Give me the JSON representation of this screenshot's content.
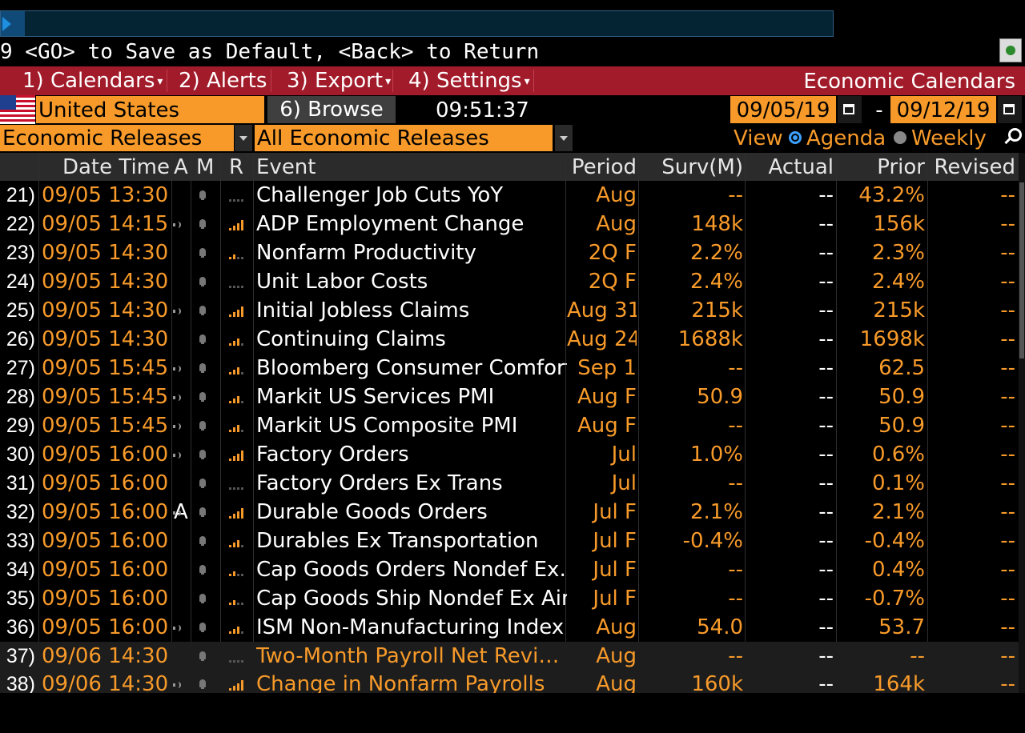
{
  "hint": "9 <GO> to Save as Default, <Back> to Return",
  "menu": {
    "items": [
      {
        "label": "1) Calendars",
        "caret": "▾"
      },
      {
        "label": "2) Alerts",
        "caret": ""
      },
      {
        "label": "3) Export",
        "caret": "▾"
      },
      {
        "label": "4) Settings",
        "caret": "▾"
      }
    ],
    "title": "Economic Calendars"
  },
  "toolbar": {
    "country": "United States",
    "browse": "6) Browse",
    "time": "09:51:37",
    "start_date": "09/05/19",
    "date_sep": "-",
    "end_date": "09/12/19"
  },
  "filters": {
    "category": "Economic Releases",
    "subcategory": "All Economic Releases",
    "view_label": "View",
    "view_agenda": "Agenda",
    "view_weekly": "Weekly",
    "selected_view": "Agenda"
  },
  "columns": {
    "datetime": "Date Time",
    "a": "A",
    "m": "M",
    "r": "R",
    "event": "Event",
    "period": "Period",
    "surv": "Surv(M)",
    "actual": "Actual",
    "prior": "Prior",
    "revised": "Revised"
  },
  "colors": {
    "accent": "#f79a2a",
    "menu": "#a21b2a"
  },
  "rows": [
    {
      "num": "21)",
      "datetime": "09/05 13:30",
      "audio": false,
      "relevance": 0,
      "event": "Challenger Job Cuts YoY",
      "period": "Aug",
      "surv": "--",
      "actual": "--",
      "prior": "43.2%",
      "revised": "--"
    },
    {
      "num": "22)",
      "datetime": "09/05 14:15",
      "audio": true,
      "relevance": 4,
      "event": "ADP Employment Change",
      "period": "Aug",
      "surv": "148k",
      "actual": "--",
      "prior": "156k",
      "revised": "--"
    },
    {
      "num": "23)",
      "datetime": "09/05 14:30",
      "audio": false,
      "relevance": 2,
      "event": "Nonfarm Productivity",
      "period": "2Q F",
      "surv": "2.2%",
      "actual": "--",
      "prior": "2.3%",
      "revised": "--"
    },
    {
      "num": "24)",
      "datetime": "09/05 14:30",
      "audio": false,
      "relevance": 0,
      "event": "Unit Labor Costs",
      "period": "2Q F",
      "surv": "2.4%",
      "actual": "--",
      "prior": "2.4%",
      "revised": "--"
    },
    {
      "num": "25)",
      "datetime": "09/05 14:30",
      "audio": true,
      "relevance": 4,
      "event": "Initial Jobless Claims",
      "period": "Aug 31",
      "surv": "215k",
      "actual": "--",
      "prior": "215k",
      "revised": "--"
    },
    {
      "num": "26)",
      "datetime": "09/05 14:30",
      "audio": false,
      "relevance": 3,
      "event": "Continuing Claims",
      "period": "Aug 24",
      "surv": "1688k",
      "actual": "--",
      "prior": "1698k",
      "revised": "--"
    },
    {
      "num": "27)",
      "datetime": "09/05 15:45",
      "audio": true,
      "relevance": 3,
      "event": "Bloomberg Consumer Comfort",
      "period": "Sep 1",
      "surv": "--",
      "actual": "--",
      "prior": "62.5",
      "revised": "--"
    },
    {
      "num": "28)",
      "datetime": "09/05 15:45",
      "audio": true,
      "relevance": 3,
      "event": "Markit US Services PMI",
      "period": "Aug F",
      "surv": "50.9",
      "actual": "--",
      "prior": "50.9",
      "revised": "--"
    },
    {
      "num": "29)",
      "datetime": "09/05 15:45",
      "audio": true,
      "relevance": 3,
      "event": "Markit US Composite PMI",
      "period": "Aug F",
      "surv": "--",
      "actual": "--",
      "prior": "50.9",
      "revised": "--"
    },
    {
      "num": "30)",
      "datetime": "09/05 16:00",
      "audio": true,
      "relevance": 4,
      "event": "Factory Orders",
      "period": "Jul",
      "surv": "1.0%",
      "actual": "--",
      "prior": "0.6%",
      "revised": "--"
    },
    {
      "num": "31)",
      "datetime": "09/05 16:00",
      "audio": false,
      "relevance": 0,
      "event": "Factory Orders Ex Trans",
      "period": "Jul",
      "surv": "--",
      "actual": "--",
      "prior": "0.1%",
      "revised": "--"
    },
    {
      "num": "32)",
      "datetime": "09/05 16:00",
      "alert_a": "A",
      "audio": true,
      "relevance": 4,
      "event": "Durable Goods Orders",
      "period": "Jul F",
      "surv": "2.1%",
      "actual": "--",
      "prior": "2.1%",
      "revised": "--"
    },
    {
      "num": "33)",
      "datetime": "09/05 16:00",
      "audio": false,
      "relevance": 3,
      "event": "Durables Ex Transportation",
      "period": "Jul F",
      "surv": "-0.4%",
      "actual": "--",
      "prior": "-0.4%",
      "revised": "--"
    },
    {
      "num": "34)",
      "datetime": "09/05 16:00",
      "audio": false,
      "relevance": 2,
      "event": "Cap Goods Orders Nondef Ex…",
      "period": "Jul F",
      "surv": "--",
      "actual": "--",
      "prior": "0.4%",
      "revised": "--"
    },
    {
      "num": "35)",
      "datetime": "09/05 16:00",
      "audio": false,
      "relevance": 2,
      "event": "Cap Goods Ship Nondef Ex Air",
      "period": "Jul F",
      "surv": "--",
      "actual": "--",
      "prior": "-0.7%",
      "revised": "--"
    },
    {
      "num": "36)",
      "datetime": "09/05 16:00",
      "audio": true,
      "relevance": 3,
      "event": "ISM Non-Manufacturing Index",
      "period": "Aug",
      "surv": "54.0",
      "actual": "--",
      "prior": "53.7",
      "revised": "--"
    },
    {
      "num": "37)",
      "datetime": "09/06 14:30",
      "audio": false,
      "relevance": 0,
      "event": "Two-Month Payroll Net Revi…",
      "period": "Aug",
      "surv": "--",
      "actual": "--",
      "prior": "--",
      "revised": "--",
      "future": true
    },
    {
      "num": "38)",
      "datetime": "09/06 14:30",
      "audio": true,
      "relevance": 4,
      "event": "Change in Nonfarm Payrolls",
      "period": "Aug",
      "surv": "160k",
      "actual": "--",
      "prior": "164k",
      "revised": "--",
      "future": true
    }
  ]
}
